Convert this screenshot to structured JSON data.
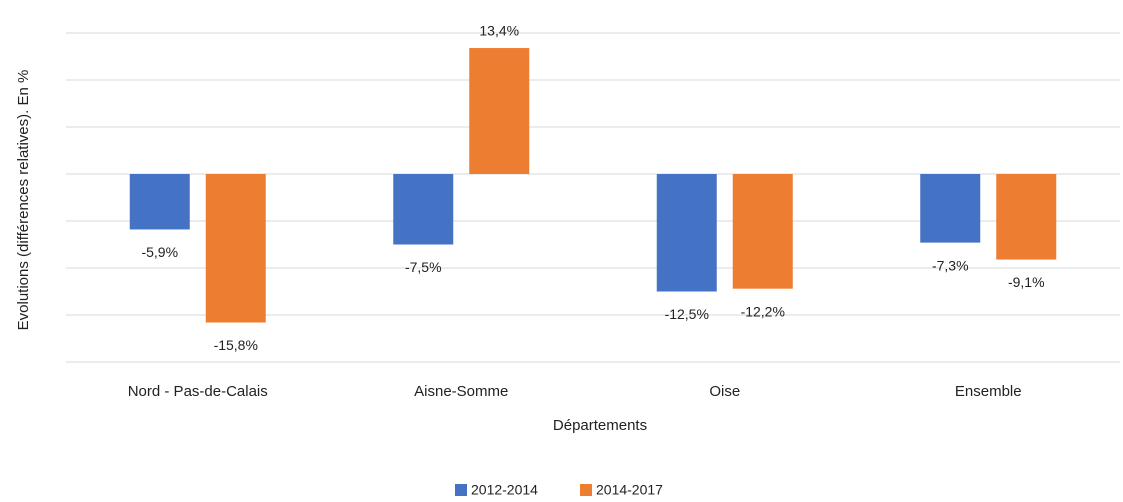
{
  "chart_data": {
    "type": "bar",
    "xlabel": "Départements",
    "ylabel": "Evolutions (différences relatives). En %",
    "categories": [
      "Nord - Pas-de-Calais",
      "Aisne-Somme",
      "Oise",
      "Ensemble"
    ],
    "series": [
      {
        "name": "2012-2014",
        "color": "#4472c4",
        "values": [
          -5.9,
          -7.5,
          -12.5,
          -7.3
        ],
        "value_labels": [
          "-5,9%",
          "-7,5%",
          "-12,5%",
          "-7,3%"
        ]
      },
      {
        "name": "2014-2017",
        "color": "#ed7d31",
        "values": [
          -15.8,
          13.4,
          -12.2,
          -9.1
        ],
        "value_labels": [
          "-15,8%",
          "13,4%",
          "-12,2%",
          "-9,1%"
        ]
      }
    ],
    "ylim": [
      -20,
      15
    ],
    "yticks": [
      -20,
      -15,
      -10,
      -5,
      0,
      5,
      10,
      15
    ],
    "grid": true
  }
}
